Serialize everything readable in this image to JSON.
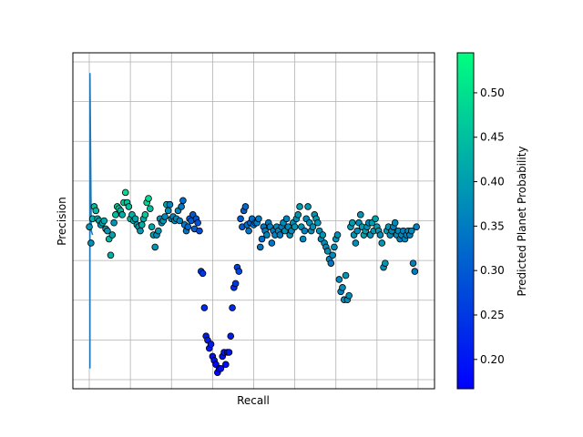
{
  "chart_data": {
    "type": "scatter",
    "xlabel": "Recall",
    "ylabel": "Precision",
    "xlim": [
      -0.05,
      1.05
    ],
    "ylim": [
      0.05,
      0.88
    ],
    "grid": true,
    "xticks_count": 9,
    "yticks_count": 9,
    "colorbar": {
      "label": "Predicted Planet Probability",
      "min": 0.167,
      "max": 0.545,
      "ticks": [
        0.2,
        0.25,
        0.3,
        0.35,
        0.4,
        0.45,
        0.5
      ],
      "tick_labels": [
        "0.20",
        "0.25",
        "0.30",
        "0.35",
        "0.40",
        "0.45",
        "0.50"
      ],
      "colormap": "winter",
      "color_low": "#0000ff",
      "color_high": "#00ff80"
    },
    "line": {
      "color": "#1f77b4",
      "points": [
        [
          0.002,
          0.1
        ],
        [
          0.002,
          0.83
        ],
        [
          0.006,
          0.44
        ],
        [
          0.01,
          0.43
        ]
      ]
    },
    "points": [
      [
        0.0,
        0.45,
        0.39
      ],
      [
        0.005,
        0.41,
        0.38
      ],
      [
        0.01,
        0.47,
        0.43
      ],
      [
        0.015,
        0.5,
        0.45
      ],
      [
        0.02,
        0.49,
        0.44
      ],
      [
        0.025,
        0.47,
        0.42
      ],
      [
        0.03,
        0.465,
        0.41
      ],
      [
        0.035,
        0.455,
        0.4
      ],
      [
        0.04,
        0.46,
        0.41
      ],
      [
        0.045,
        0.465,
        0.42
      ],
      [
        0.05,
        0.445,
        0.4
      ],
      [
        0.055,
        0.44,
        0.39
      ],
      [
        0.06,
        0.42,
        0.44
      ],
      [
        0.065,
        0.38,
        0.43
      ],
      [
        0.07,
        0.43,
        0.41
      ],
      [
        0.075,
        0.46,
        0.39
      ],
      [
        0.08,
        0.48,
        0.45
      ],
      [
        0.085,
        0.5,
        0.46
      ],
      [
        0.09,
        0.495,
        0.47
      ],
      [
        0.095,
        0.49,
        0.44
      ],
      [
        0.1,
        0.48,
        0.43
      ],
      [
        0.105,
        0.51,
        0.47
      ],
      [
        0.11,
        0.535,
        0.49
      ],
      [
        0.115,
        0.51,
        0.46
      ],
      [
        0.12,
        0.5,
        0.45
      ],
      [
        0.125,
        0.47,
        0.44
      ],
      [
        0.13,
        0.48,
        0.43
      ],
      [
        0.135,
        0.465,
        0.42
      ],
      [
        0.14,
        0.47,
        0.41
      ],
      [
        0.145,
        0.455,
        0.4
      ],
      [
        0.15,
        0.45,
        0.4
      ],
      [
        0.155,
        0.44,
        0.39
      ],
      [
        0.16,
        0.455,
        0.43
      ],
      [
        0.165,
        0.47,
        0.42
      ],
      [
        0.17,
        0.48,
        0.47
      ],
      [
        0.175,
        0.51,
        0.48
      ],
      [
        0.18,
        0.52,
        0.49
      ],
      [
        0.185,
        0.495,
        0.45
      ],
      [
        0.19,
        0.45,
        0.41
      ],
      [
        0.195,
        0.43,
        0.4
      ],
      [
        0.2,
        0.4,
        0.39
      ],
      [
        0.205,
        0.43,
        0.38
      ],
      [
        0.21,
        0.44,
        0.39
      ],
      [
        0.215,
        0.47,
        0.38
      ],
      [
        0.22,
        0.46,
        0.38
      ],
      [
        0.225,
        0.465,
        0.39
      ],
      [
        0.23,
        0.475,
        0.37
      ],
      [
        0.235,
        0.505,
        0.41
      ],
      [
        0.24,
        0.49,
        0.38
      ],
      [
        0.245,
        0.505,
        0.36
      ],
      [
        0.25,
        0.47,
        0.37
      ],
      [
        0.255,
        0.475,
        0.36
      ],
      [
        0.26,
        0.465,
        0.38
      ],
      [
        0.265,
        0.47,
        0.37
      ],
      [
        0.27,
        0.49,
        0.37
      ],
      [
        0.275,
        0.465,
        0.36
      ],
      [
        0.28,
        0.5,
        0.35
      ],
      [
        0.285,
        0.515,
        0.33
      ],
      [
        0.29,
        0.455,
        0.35
      ],
      [
        0.295,
        0.44,
        0.34
      ],
      [
        0.3,
        0.45,
        0.32
      ],
      [
        0.305,
        0.47,
        0.31
      ],
      [
        0.31,
        0.465,
        0.3
      ],
      [
        0.315,
        0.48,
        0.3
      ],
      [
        0.32,
        0.445,
        0.31
      ],
      [
        0.325,
        0.47,
        0.29
      ],
      [
        0.33,
        0.46,
        0.29
      ],
      [
        0.335,
        0.44,
        0.28
      ],
      [
        0.34,
        0.34,
        0.26
      ],
      [
        0.345,
        0.335,
        0.25
      ],
      [
        0.35,
        0.25,
        0.23
      ],
      [
        0.355,
        0.18,
        0.21
      ],
      [
        0.36,
        0.17,
        0.21
      ],
      [
        0.365,
        0.15,
        0.2
      ],
      [
        0.37,
        0.16,
        0.21
      ],
      [
        0.375,
        0.13,
        0.19
      ],
      [
        0.38,
        0.12,
        0.19
      ],
      [
        0.385,
        0.11,
        0.18
      ],
      [
        0.39,
        0.09,
        0.17
      ],
      [
        0.395,
        0.1,
        0.18
      ],
      [
        0.4,
        0.1,
        0.18
      ],
      [
        0.405,
        0.13,
        0.19
      ],
      [
        0.41,
        0.14,
        0.2
      ],
      [
        0.415,
        0.11,
        0.19
      ],
      [
        0.42,
        0.14,
        0.19
      ],
      [
        0.425,
        0.14,
        0.2
      ],
      [
        0.43,
        0.18,
        0.21
      ],
      [
        0.435,
        0.25,
        0.23
      ],
      [
        0.44,
        0.3,
        0.24
      ],
      [
        0.445,
        0.31,
        0.25
      ],
      [
        0.45,
        0.35,
        0.26
      ],
      [
        0.455,
        0.34,
        0.27
      ],
      [
        0.46,
        0.47,
        0.3
      ],
      [
        0.465,
        0.45,
        0.3
      ],
      [
        0.47,
        0.49,
        0.31
      ],
      [
        0.475,
        0.5,
        0.32
      ],
      [
        0.48,
        0.455,
        0.33
      ],
      [
        0.485,
        0.44,
        0.34
      ],
      [
        0.49,
        0.46,
        0.32
      ],
      [
        0.495,
        0.47,
        0.33
      ],
      [
        0.5,
        0.455,
        0.34
      ],
      [
        0.505,
        0.46,
        0.33
      ],
      [
        0.51,
        0.46,
        0.35
      ],
      [
        0.515,
        0.47,
        0.35
      ],
      [
        0.52,
        0.4,
        0.34
      ],
      [
        0.525,
        0.42,
        0.33
      ],
      [
        0.53,
        0.45,
        0.34
      ],
      [
        0.535,
        0.44,
        0.35
      ],
      [
        0.54,
        0.43,
        0.36
      ],
      [
        0.545,
        0.46,
        0.35
      ],
      [
        0.55,
        0.45,
        0.36
      ],
      [
        0.555,
        0.41,
        0.34
      ],
      [
        0.56,
        0.44,
        0.35
      ],
      [
        0.565,
        0.43,
        0.36
      ],
      [
        0.57,
        0.45,
        0.37
      ],
      [
        0.575,
        0.44,
        0.36
      ],
      [
        0.58,
        0.43,
        0.35
      ],
      [
        0.585,
        0.45,
        0.36
      ],
      [
        0.59,
        0.46,
        0.37
      ],
      [
        0.595,
        0.44,
        0.38
      ],
      [
        0.6,
        0.47,
        0.36
      ],
      [
        0.605,
        0.45,
        0.37
      ],
      [
        0.61,
        0.43,
        0.38
      ],
      [
        0.615,
        0.44,
        0.37
      ],
      [
        0.62,
        0.46,
        0.38
      ],
      [
        0.625,
        0.45,
        0.39
      ],
      [
        0.63,
        0.47,
        0.38
      ],
      [
        0.635,
        0.48,
        0.39
      ],
      [
        0.64,
        0.5,
        0.4
      ],
      [
        0.645,
        0.45,
        0.38
      ],
      [
        0.65,
        0.42,
        0.37
      ],
      [
        0.655,
        0.44,
        0.36
      ],
      [
        0.66,
        0.47,
        0.37
      ],
      [
        0.665,
        0.5,
        0.39
      ],
      [
        0.67,
        0.46,
        0.38
      ],
      [
        0.675,
        0.44,
        0.37
      ],
      [
        0.68,
        0.45,
        0.38
      ],
      [
        0.685,
        0.48,
        0.39
      ],
      [
        0.69,
        0.47,
        0.4
      ],
      [
        0.695,
        0.46,
        0.39
      ],
      [
        0.7,
        0.44,
        0.38
      ],
      [
        0.705,
        0.42,
        0.37
      ],
      [
        0.71,
        0.43,
        0.39
      ],
      [
        0.715,
        0.41,
        0.38
      ],
      [
        0.72,
        0.4,
        0.37
      ],
      [
        0.725,
        0.39,
        0.38
      ],
      [
        0.73,
        0.37,
        0.36
      ],
      [
        0.735,
        0.36,
        0.35
      ],
      [
        0.74,
        0.38,
        0.37
      ],
      [
        0.745,
        0.4,
        0.38
      ],
      [
        0.75,
        0.42,
        0.39
      ],
      [
        0.755,
        0.43,
        0.38
      ],
      [
        0.76,
        0.32,
        0.37
      ],
      [
        0.765,
        0.29,
        0.36
      ],
      [
        0.77,
        0.3,
        0.37
      ],
      [
        0.775,
        0.27,
        0.38
      ],
      [
        0.78,
        0.33,
        0.39
      ],
      [
        0.785,
        0.27,
        0.37
      ],
      [
        0.79,
        0.28,
        0.38
      ],
      [
        0.795,
        0.45,
        0.39
      ],
      [
        0.8,
        0.46,
        0.4
      ],
      [
        0.805,
        0.43,
        0.39
      ],
      [
        0.81,
        0.41,
        0.38
      ],
      [
        0.815,
        0.44,
        0.37
      ],
      [
        0.82,
        0.46,
        0.38
      ],
      [
        0.825,
        0.48,
        0.39
      ],
      [
        0.83,
        0.45,
        0.4
      ],
      [
        0.835,
        0.43,
        0.41
      ],
      [
        0.84,
        0.44,
        0.4
      ],
      [
        0.845,
        0.45,
        0.39
      ],
      [
        0.85,
        0.46,
        0.38
      ],
      [
        0.855,
        0.43,
        0.39
      ],
      [
        0.86,
        0.46,
        0.4
      ],
      [
        0.865,
        0.44,
        0.39
      ],
      [
        0.87,
        0.47,
        0.41
      ],
      [
        0.875,
        0.45,
        0.4
      ],
      [
        0.88,
        0.44,
        0.39
      ],
      [
        0.885,
        0.43,
        0.38
      ],
      [
        0.89,
        0.41,
        0.39
      ],
      [
        0.895,
        0.35,
        0.38
      ],
      [
        0.9,
        0.36,
        0.39
      ],
      [
        0.905,
        0.44,
        0.4
      ],
      [
        0.91,
        0.45,
        0.39
      ],
      [
        0.915,
        0.43,
        0.38
      ],
      [
        0.92,
        0.44,
        0.37
      ],
      [
        0.925,
        0.45,
        0.36
      ],
      [
        0.93,
        0.46,
        0.37
      ],
      [
        0.935,
        0.43,
        0.38
      ],
      [
        0.94,
        0.44,
        0.37
      ],
      [
        0.945,
        0.42,
        0.36
      ],
      [
        0.95,
        0.43,
        0.37
      ],
      [
        0.955,
        0.44,
        0.36
      ],
      [
        0.96,
        0.42,
        0.37
      ],
      [
        0.965,
        0.43,
        0.36
      ],
      [
        0.97,
        0.44,
        0.37
      ],
      [
        0.975,
        0.43,
        0.36
      ],
      [
        0.98,
        0.44,
        0.37
      ],
      [
        0.985,
        0.36,
        0.36
      ],
      [
        0.99,
        0.34,
        0.35
      ],
      [
        0.995,
        0.45,
        0.36
      ]
    ]
  }
}
